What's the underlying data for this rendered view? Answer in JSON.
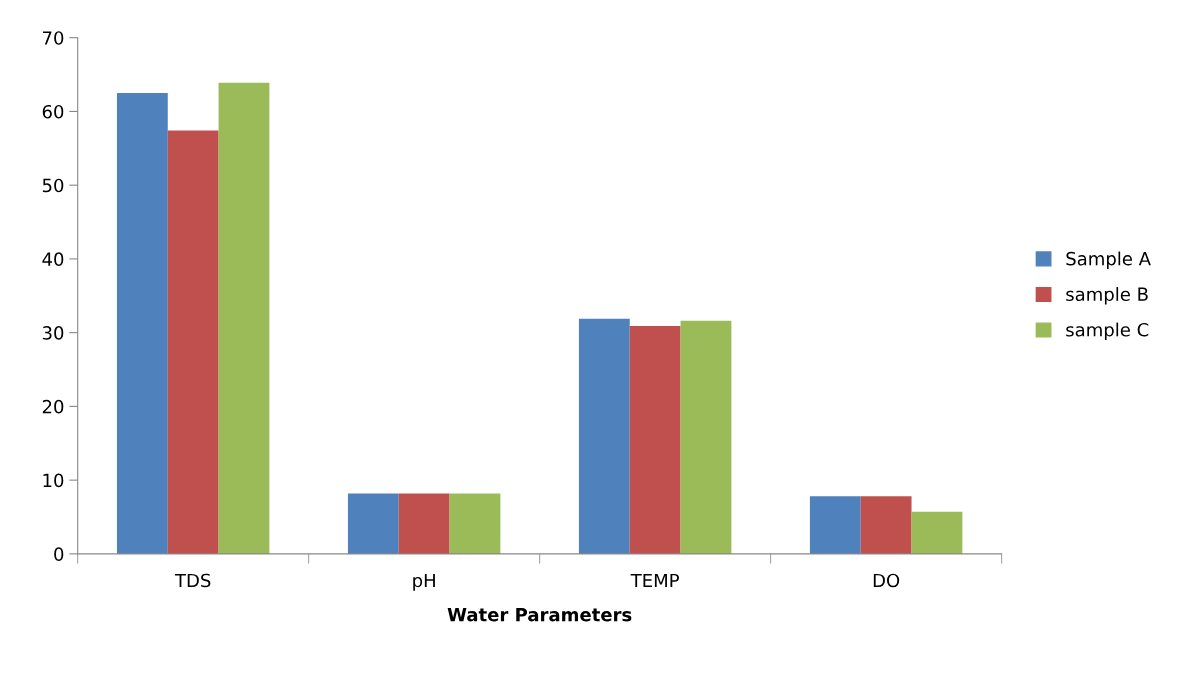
{
  "chart_data": {
    "type": "bar",
    "xlabel": "Water Parameters",
    "categories": [
      "TDS",
      "pH",
      "TEMP",
      "DO"
    ],
    "series": [
      {
        "name": "Sample A",
        "color": "#4f81bd",
        "values": [
          62.5,
          8.2,
          31.9,
          7.8
        ]
      },
      {
        "name": "sample B",
        "color": "#c0504d",
        "values": [
          57.4,
          8.2,
          30.9,
          7.8
        ]
      },
      {
        "name": "sample C",
        "color": "#9bbb59",
        "values": [
          63.9,
          8.2,
          31.6,
          5.7
        ]
      }
    ],
    "ylim": [
      0,
      70
    ],
    "yticks": [
      0,
      10,
      20,
      30,
      40,
      50,
      60,
      70
    ],
    "grid": false,
    "legend": "right"
  }
}
